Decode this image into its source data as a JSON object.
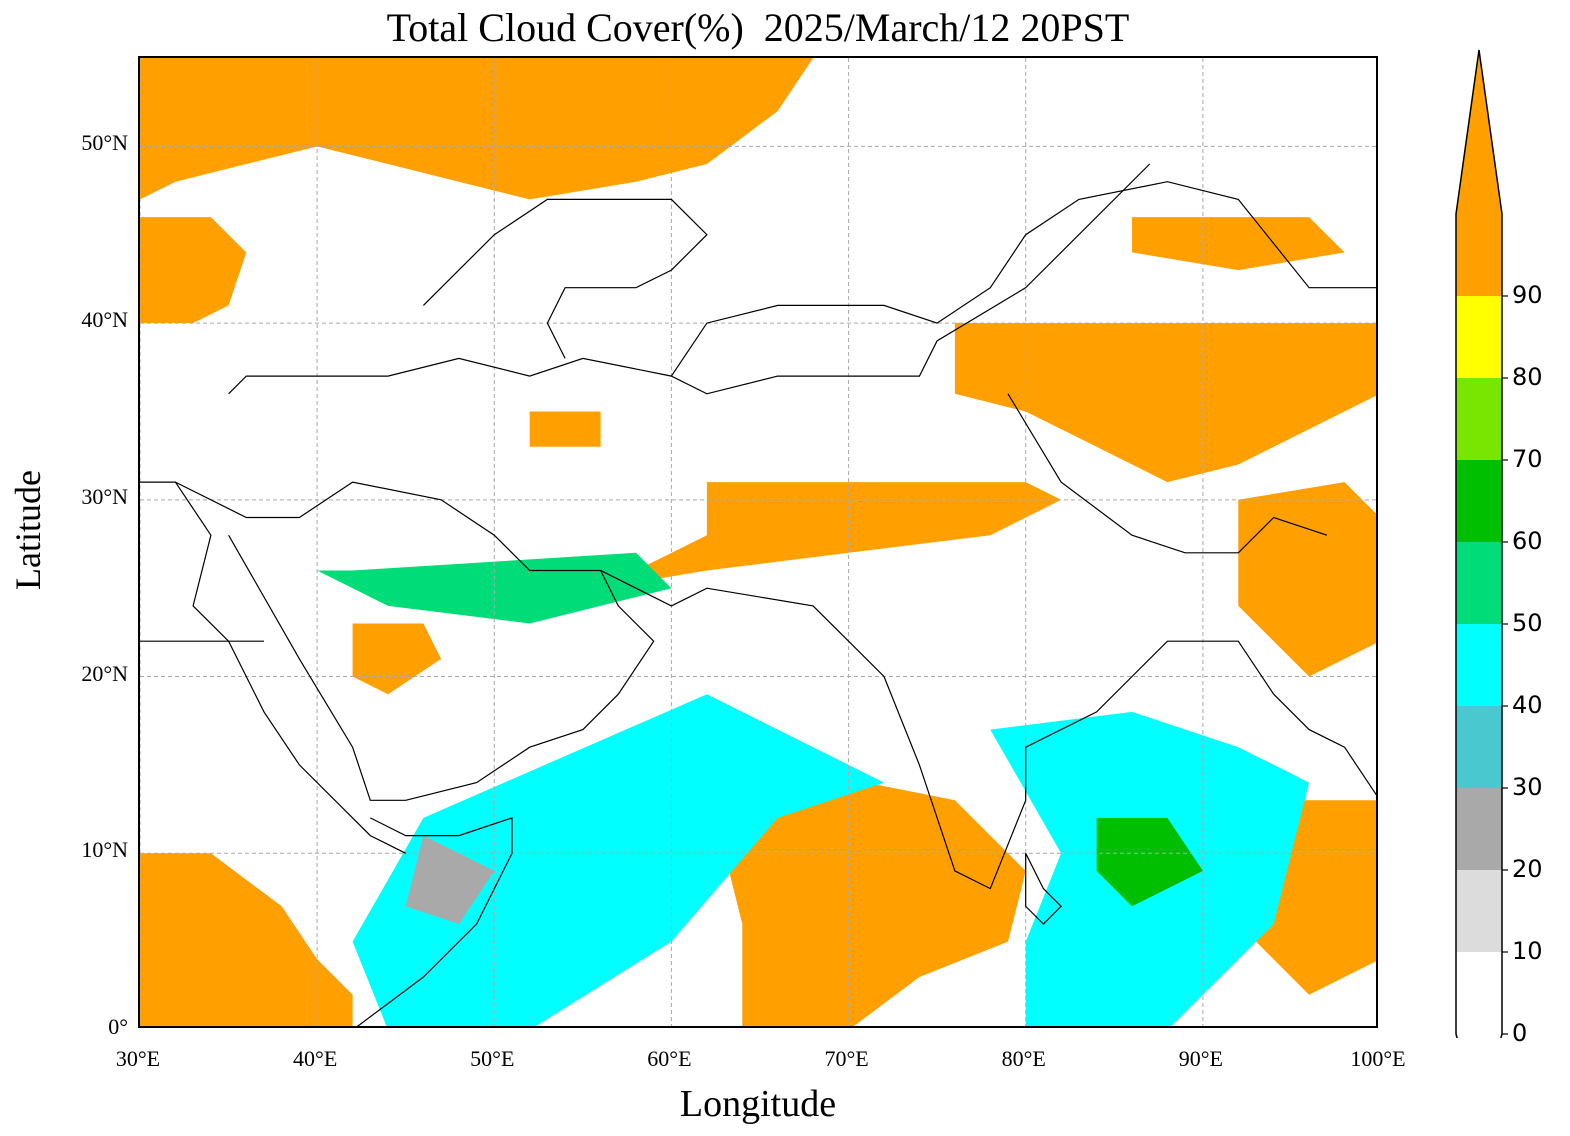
{
  "title": "Total Cloud Cover(%)  2025/March/12 20PST",
  "axes": {
    "xlabel": "Longitude",
    "ylabel": "Latitude",
    "lon_range": [
      30,
      100
    ],
    "lat_range": [
      0,
      55
    ],
    "x_ticks": [
      {
        "value": 30,
        "label": "30°E"
      },
      {
        "value": 40,
        "label": "40°E"
      },
      {
        "value": 50,
        "label": "50°E"
      },
      {
        "value": 60,
        "label": "60°E"
      },
      {
        "value": 70,
        "label": "70°E"
      },
      {
        "value": 80,
        "label": "80°E"
      },
      {
        "value": 90,
        "label": "90°E"
      },
      {
        "value": 100,
        "label": "100°E"
      }
    ],
    "y_ticks": [
      {
        "value": 0,
        "label": "0°"
      },
      {
        "value": 10,
        "label": "10°N"
      },
      {
        "value": 20,
        "label": "20°N"
      },
      {
        "value": 30,
        "label": "30°N"
      },
      {
        "value": 40,
        "label": "40°N"
      },
      {
        "value": 50,
        "label": "50°N"
      }
    ],
    "grid": true
  },
  "colorbar": {
    "extend": "both",
    "levels": [
      {
        "label": "0",
        "color": "#ffffff"
      },
      {
        "label": "10",
        "color": "#dcdcdc"
      },
      {
        "label": "20",
        "color": "#a9a9a9"
      },
      {
        "label": "30",
        "color": "#4ac8d0"
      },
      {
        "label": "40",
        "color": "#00ffff"
      },
      {
        "label": "50",
        "color": "#00dc78"
      },
      {
        "label": "60",
        "color": "#00be00"
      },
      {
        "label": "70",
        "color": "#78e600"
      },
      {
        "label": "80",
        "color": "#ffff00"
      },
      {
        "label": "90",
        "color": "#ff9f00"
      }
    ],
    "max_color": "#ff9f00",
    "min_color": "#ffffff"
  },
  "map_layers": {
    "cloud_regions": [
      {
        "level": "90",
        "color": "#ff9f00",
        "lonlat": [
          [
            30,
            55
          ],
          [
            68,
            55
          ],
          [
            66,
            52
          ],
          [
            62,
            49
          ],
          [
            58,
            48
          ],
          [
            52,
            47
          ],
          [
            48,
            48
          ],
          [
            44,
            49
          ],
          [
            40,
            50
          ],
          [
            36,
            49
          ],
          [
            32,
            48
          ],
          [
            30,
            47
          ]
        ]
      },
      {
        "level": "90",
        "color": "#ff9f00",
        "lonlat": [
          [
            30,
            46
          ],
          [
            34,
            46
          ],
          [
            36,
            44
          ],
          [
            35,
            41
          ],
          [
            33,
            40
          ],
          [
            30,
            40
          ]
        ]
      },
      {
        "level": "90",
        "color": "#ff9f00",
        "lonlat": [
          [
            76,
            40
          ],
          [
            100,
            40
          ],
          [
            100,
            36
          ],
          [
            96,
            34
          ],
          [
            92,
            32
          ],
          [
            88,
            31
          ],
          [
            84,
            33
          ],
          [
            80,
            35
          ],
          [
            76,
            36
          ]
        ]
      },
      {
        "level": "90",
        "color": "#ff9f00",
        "lonlat": [
          [
            62,
            31
          ],
          [
            80,
            31
          ],
          [
            82,
            30
          ],
          [
            78,
            28
          ],
          [
            70,
            27
          ],
          [
            62,
            26
          ],
          [
            56,
            25
          ],
          [
            62,
            28
          ]
        ]
      },
      {
        "level": "90",
        "color": "#ff9f00",
        "lonlat": [
          [
            66,
            15
          ],
          [
            76,
            13
          ],
          [
            78,
            11
          ],
          [
            80,
            9
          ],
          [
            79,
            5
          ],
          [
            74,
            3
          ],
          [
            70,
            0
          ],
          [
            64,
            0
          ],
          [
            64,
            6
          ],
          [
            63,
            10
          ]
        ]
      },
      {
        "level": "90",
        "color": "#ff9f00",
        "lonlat": [
          [
            30,
            10
          ],
          [
            34,
            10
          ],
          [
            38,
            7
          ],
          [
            40,
            4
          ],
          [
            42,
            2
          ],
          [
            42,
            0
          ],
          [
            30,
            0
          ]
        ]
      },
      {
        "level": "90",
        "color": "#ff9f00",
        "lonlat": [
          [
            92,
            30
          ],
          [
            98,
            31
          ],
          [
            100,
            29
          ],
          [
            100,
            22
          ],
          [
            96,
            20
          ],
          [
            92,
            24
          ]
        ]
      },
      {
        "level": "90",
        "color": "#ff9f00",
        "lonlat": [
          [
            92,
            13
          ],
          [
            100,
            13
          ],
          [
            100,
            4
          ],
          [
            96,
            2
          ],
          [
            93,
            5
          ]
        ]
      },
      {
        "level": "90",
        "color": "#ff9f00",
        "lonlat": [
          [
            42,
            23
          ],
          [
            46,
            23
          ],
          [
            47,
            21
          ],
          [
            44,
            19
          ],
          [
            42,
            20
          ]
        ]
      },
      {
        "level": "90",
        "color": "#ff9f00",
        "lonlat": [
          [
            52,
            35
          ],
          [
            56,
            35
          ],
          [
            56,
            33
          ],
          [
            52,
            33
          ]
        ]
      },
      {
        "level": "90",
        "color": "#ff9f00",
        "lonlat": [
          [
            86,
            46
          ],
          [
            96,
            46
          ],
          [
            98,
            44
          ],
          [
            92,
            43
          ],
          [
            86,
            44
          ]
        ]
      },
      {
        "level": "50",
        "color": "#00dc78",
        "lonlat": [
          [
            42,
            26
          ],
          [
            58,
            27
          ],
          [
            60,
            25
          ],
          [
            52,
            23
          ],
          [
            44,
            24
          ],
          [
            40,
            26
          ]
        ]
      },
      {
        "level": "40",
        "color": "#00ffff",
        "lonlat": [
          [
            46,
            12
          ],
          [
            62,
            19
          ],
          [
            68,
            16
          ],
          [
            72,
            14
          ],
          [
            66,
            12
          ],
          [
            60,
            5
          ],
          [
            52,
            0
          ],
          [
            44,
            0
          ],
          [
            42,
            5
          ]
        ]
      },
      {
        "level": "40",
        "color": "#00ffff",
        "lonlat": [
          [
            78,
            17
          ],
          [
            86,
            18
          ],
          [
            92,
            16
          ],
          [
            96,
            14
          ],
          [
            94,
            6
          ],
          [
            88,
            0
          ],
          [
            80,
            0
          ],
          [
            80,
            5
          ],
          [
            82,
            10
          ]
        ]
      },
      {
        "level": "60",
        "color": "#00be00",
        "lonlat": [
          [
            84,
            12
          ],
          [
            88,
            12
          ],
          [
            90,
            9
          ],
          [
            86,
            7
          ],
          [
            84,
            9
          ]
        ]
      },
      {
        "level": "20",
        "color": "#a9a9a9",
        "lonlat": [
          [
            46,
            11
          ],
          [
            50,
            9
          ],
          [
            48,
            6
          ],
          [
            45,
            7
          ]
        ]
      }
    ],
    "borders": [
      {
        "lonlat": [
          [
            35,
            36
          ],
          [
            36,
            37
          ],
          [
            40,
            37
          ],
          [
            44,
            37
          ],
          [
            48,
            38
          ],
          [
            52,
            37
          ],
          [
            55,
            38
          ],
          [
            60,
            37
          ],
          [
            62,
            36
          ],
          [
            66,
            37
          ],
          [
            71,
            37
          ],
          [
            74,
            37
          ],
          [
            75,
            39
          ],
          [
            80,
            42
          ],
          [
            87,
            49
          ]
        ]
      },
      {
        "lonlat": [
          [
            32,
            31
          ],
          [
            36,
            29
          ],
          [
            39,
            29
          ],
          [
            42,
            31
          ],
          [
            47,
            30
          ],
          [
            50,
            28
          ],
          [
            52,
            26
          ],
          [
            56,
            26
          ],
          [
            60,
            24
          ],
          [
            62,
            25
          ],
          [
            68,
            24
          ],
          [
            70,
            22
          ],
          [
            72,
            20
          ],
          [
            74,
            15
          ],
          [
            76,
            9
          ],
          [
            78,
            8
          ],
          [
            80,
            13
          ],
          [
            80,
            16
          ],
          [
            84,
            18
          ],
          [
            88,
            22
          ],
          [
            92,
            22
          ],
          [
            94,
            19
          ],
          [
            96,
            17
          ],
          [
            98,
            16
          ],
          [
            100,
            13
          ]
        ]
      },
      {
        "lonlat": [
          [
            35,
            28
          ],
          [
            39,
            21
          ],
          [
            42,
            16
          ],
          [
            43,
            13
          ],
          [
            45,
            13
          ],
          [
            49,
            14
          ],
          [
            52,
            16
          ],
          [
            55,
            17
          ],
          [
            57,
            19
          ],
          [
            59,
            22
          ],
          [
            57,
            24
          ],
          [
            56,
            26
          ]
        ]
      },
      {
        "lonlat": [
          [
            43,
            12
          ],
          [
            45,
            11
          ],
          [
            48,
            11
          ],
          [
            51,
            12
          ],
          [
            51,
            10
          ],
          [
            49,
            6
          ],
          [
            46,
            3
          ],
          [
            42,
            0
          ]
        ]
      },
      {
        "lonlat": [
          [
            30,
            31
          ],
          [
            32,
            31
          ],
          [
            34,
            28
          ],
          [
            33,
            24
          ],
          [
            35,
            22
          ],
          [
            37,
            18
          ],
          [
            39,
            15
          ],
          [
            42,
            12
          ],
          [
            43,
            11
          ],
          [
            45,
            10
          ]
        ]
      },
      {
        "lonlat": [
          [
            46,
            41
          ],
          [
            50,
            45
          ],
          [
            53,
            47
          ],
          [
            57,
            47
          ],
          [
            60,
            47
          ],
          [
            62,
            45
          ],
          [
            60,
            43
          ],
          [
            58,
            42
          ],
          [
            54,
            42
          ],
          [
            53,
            40
          ],
          [
            54,
            38
          ]
        ]
      },
      {
        "lonlat": [
          [
            60,
            37
          ],
          [
            62,
            40
          ],
          [
            66,
            41
          ],
          [
            69,
            41
          ],
          [
            72,
            41
          ],
          [
            75,
            40
          ],
          [
            78,
            42
          ],
          [
            80,
            45
          ],
          [
            83,
            47
          ],
          [
            88,
            48
          ],
          [
            92,
            47
          ],
          [
            96,
            42
          ],
          [
            100,
            42
          ]
        ]
      },
      {
        "lonlat": [
          [
            79,
            36
          ],
          [
            82,
            31
          ],
          [
            86,
            28
          ],
          [
            89,
            27
          ],
          [
            92,
            27
          ],
          [
            94,
            29
          ],
          [
            97,
            28
          ]
        ]
      },
      {
        "lonlat": [
          [
            30,
            22
          ],
          [
            37,
            22
          ]
        ]
      },
      {
        "lonlat": [
          [
            80,
            10
          ],
          [
            81,
            8
          ],
          [
            82,
            7
          ],
          [
            81,
            6
          ],
          [
            80,
            7
          ],
          [
            80,
            9
          ],
          [
            80,
            10
          ]
        ]
      }
    ]
  }
}
